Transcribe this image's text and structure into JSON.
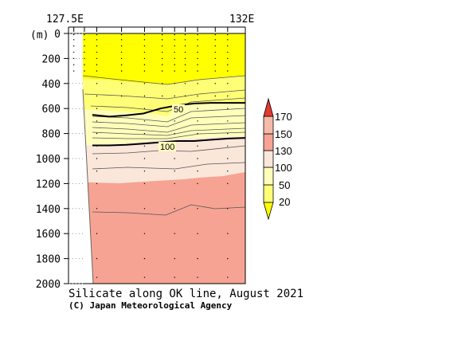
{
  "chart_data": {
    "type": "heatmap",
    "title": "Silicate along OK line, August 2021",
    "credit": "(C) Japan Meteorological Agency",
    "y_unit": "(m)",
    "x_ticks": [
      "127.5E",
      "132E"
    ],
    "y_ticks": [
      0,
      200,
      400,
      600,
      800,
      1000,
      1200,
      1400,
      1600,
      1800,
      2000
    ],
    "ylim": [
      0,
      2000
    ],
    "y_inverted": true,
    "colorbar": {
      "levels": [
        20,
        50,
        100,
        130,
        150,
        170
      ],
      "labels": [
        "20",
        "50",
        "100",
        "130",
        "150",
        "170"
      ],
      "colors": [
        "#ffff00",
        "#ffff77",
        "#ffffbb",
        "#fbe6da",
        "#f7a393",
        "#f5bba8",
        "#e33a30"
      ]
    },
    "contour_labels": [
      {
        "text": "50",
        "value": 50
      },
      {
        "text": "100",
        "value": 100
      }
    ],
    "contours": [
      {
        "value": 50,
        "thick": true,
        "depths": [
          650,
          665,
          655,
          640,
          600,
          575,
          560,
          555,
          555,
          555
        ]
      },
      {
        "value": 100,
        "thick": true,
        "depths": [
          895,
          895,
          890,
          880,
          870,
          860,
          860,
          850,
          840,
          835
        ]
      }
    ],
    "stations_x": [
      0.03,
      0.09,
      0.16,
      0.3,
      0.43,
      0.53,
      0.6,
      0.66,
      0.73,
      0.83,
      0.9
    ]
  }
}
